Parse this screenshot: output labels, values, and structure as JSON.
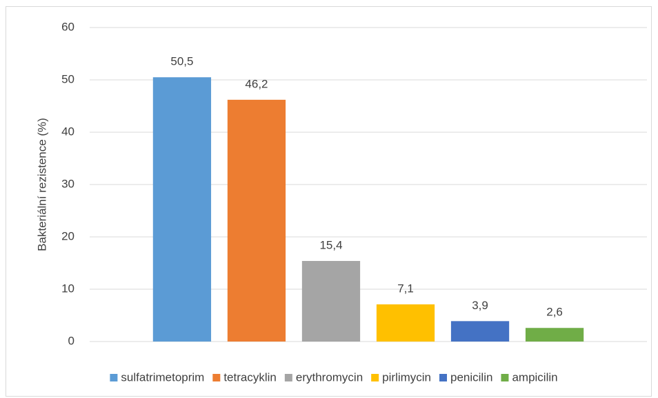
{
  "chart_data": {
    "type": "bar",
    "y_label": "Bakteriální rezistence (%)",
    "categories": [
      null
    ],
    "series": [
      {
        "name": "sulfatrimetoprim",
        "color": "#5b9bd5",
        "values": [
          50.5
        ],
        "value_labels": [
          "50,5"
        ]
      },
      {
        "name": "tetracyklin",
        "color": "#ed7d31",
        "values": [
          46.2
        ],
        "value_labels": [
          "46,2"
        ]
      },
      {
        "name": "erythromycin",
        "color": "#a5a5a5",
        "values": [
          15.4
        ],
        "value_labels": [
          "15,4"
        ]
      },
      {
        "name": "pirlimycin",
        "color": "#ffc000",
        "values": [
          7.1
        ],
        "value_labels": [
          "7,1"
        ]
      },
      {
        "name": "penicilin",
        "color": "#4472c4",
        "values": [
          3.9
        ],
        "value_labels": [
          "3,9"
        ]
      },
      {
        "name": "ampicilin",
        "color": "#70ad47",
        "values": [
          2.6
        ],
        "value_labels": [
          "2,6"
        ]
      }
    ],
    "ylim": [
      0,
      60
    ],
    "yticks": [
      0,
      10,
      20,
      30,
      40,
      50,
      60
    ],
    "grid": true,
    "legend": "bottom"
  }
}
